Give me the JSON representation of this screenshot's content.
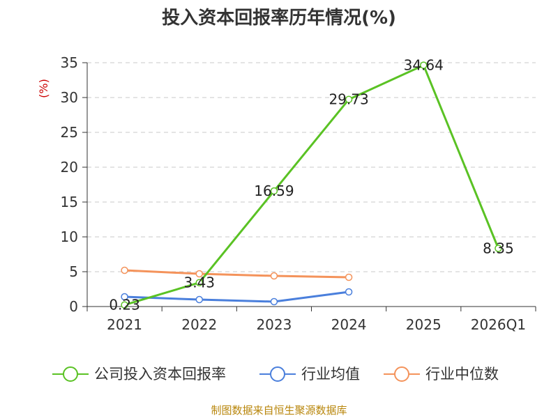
{
  "chart_data": {
    "type": "line",
    "title": "投入资本回报率历年情况(%)",
    "ylabel": "(%)",
    "categories": [
      "2021",
      "2022",
      "2023",
      "2024",
      "2025",
      "2026Q1"
    ],
    "ylim": [
      0,
      35
    ],
    "yticks": [
      0,
      5,
      10,
      15,
      20,
      25,
      30,
      35
    ],
    "grid": true,
    "legend_position": "bottom",
    "series": [
      {
        "name": "公司投入资本回报率",
        "color": "#5ac224",
        "values": [
          0.23,
          3.43,
          16.59,
          29.73,
          34.64,
          8.35
        ],
        "labels": [
          "0.23",
          "3.43",
          "16.59",
          "29.73",
          "34.64",
          "8.35"
        ]
      },
      {
        "name": "行业均值",
        "color": "#4a7fdc",
        "values": [
          1.4,
          1.0,
          0.7,
          2.1,
          null,
          null
        ]
      },
      {
        "name": "行业中位数",
        "color": "#f4935b",
        "values": [
          5.2,
          4.7,
          4.4,
          4.2,
          null,
          null
        ]
      }
    ]
  },
  "source": "制图数据来自恒生聚源数据库"
}
